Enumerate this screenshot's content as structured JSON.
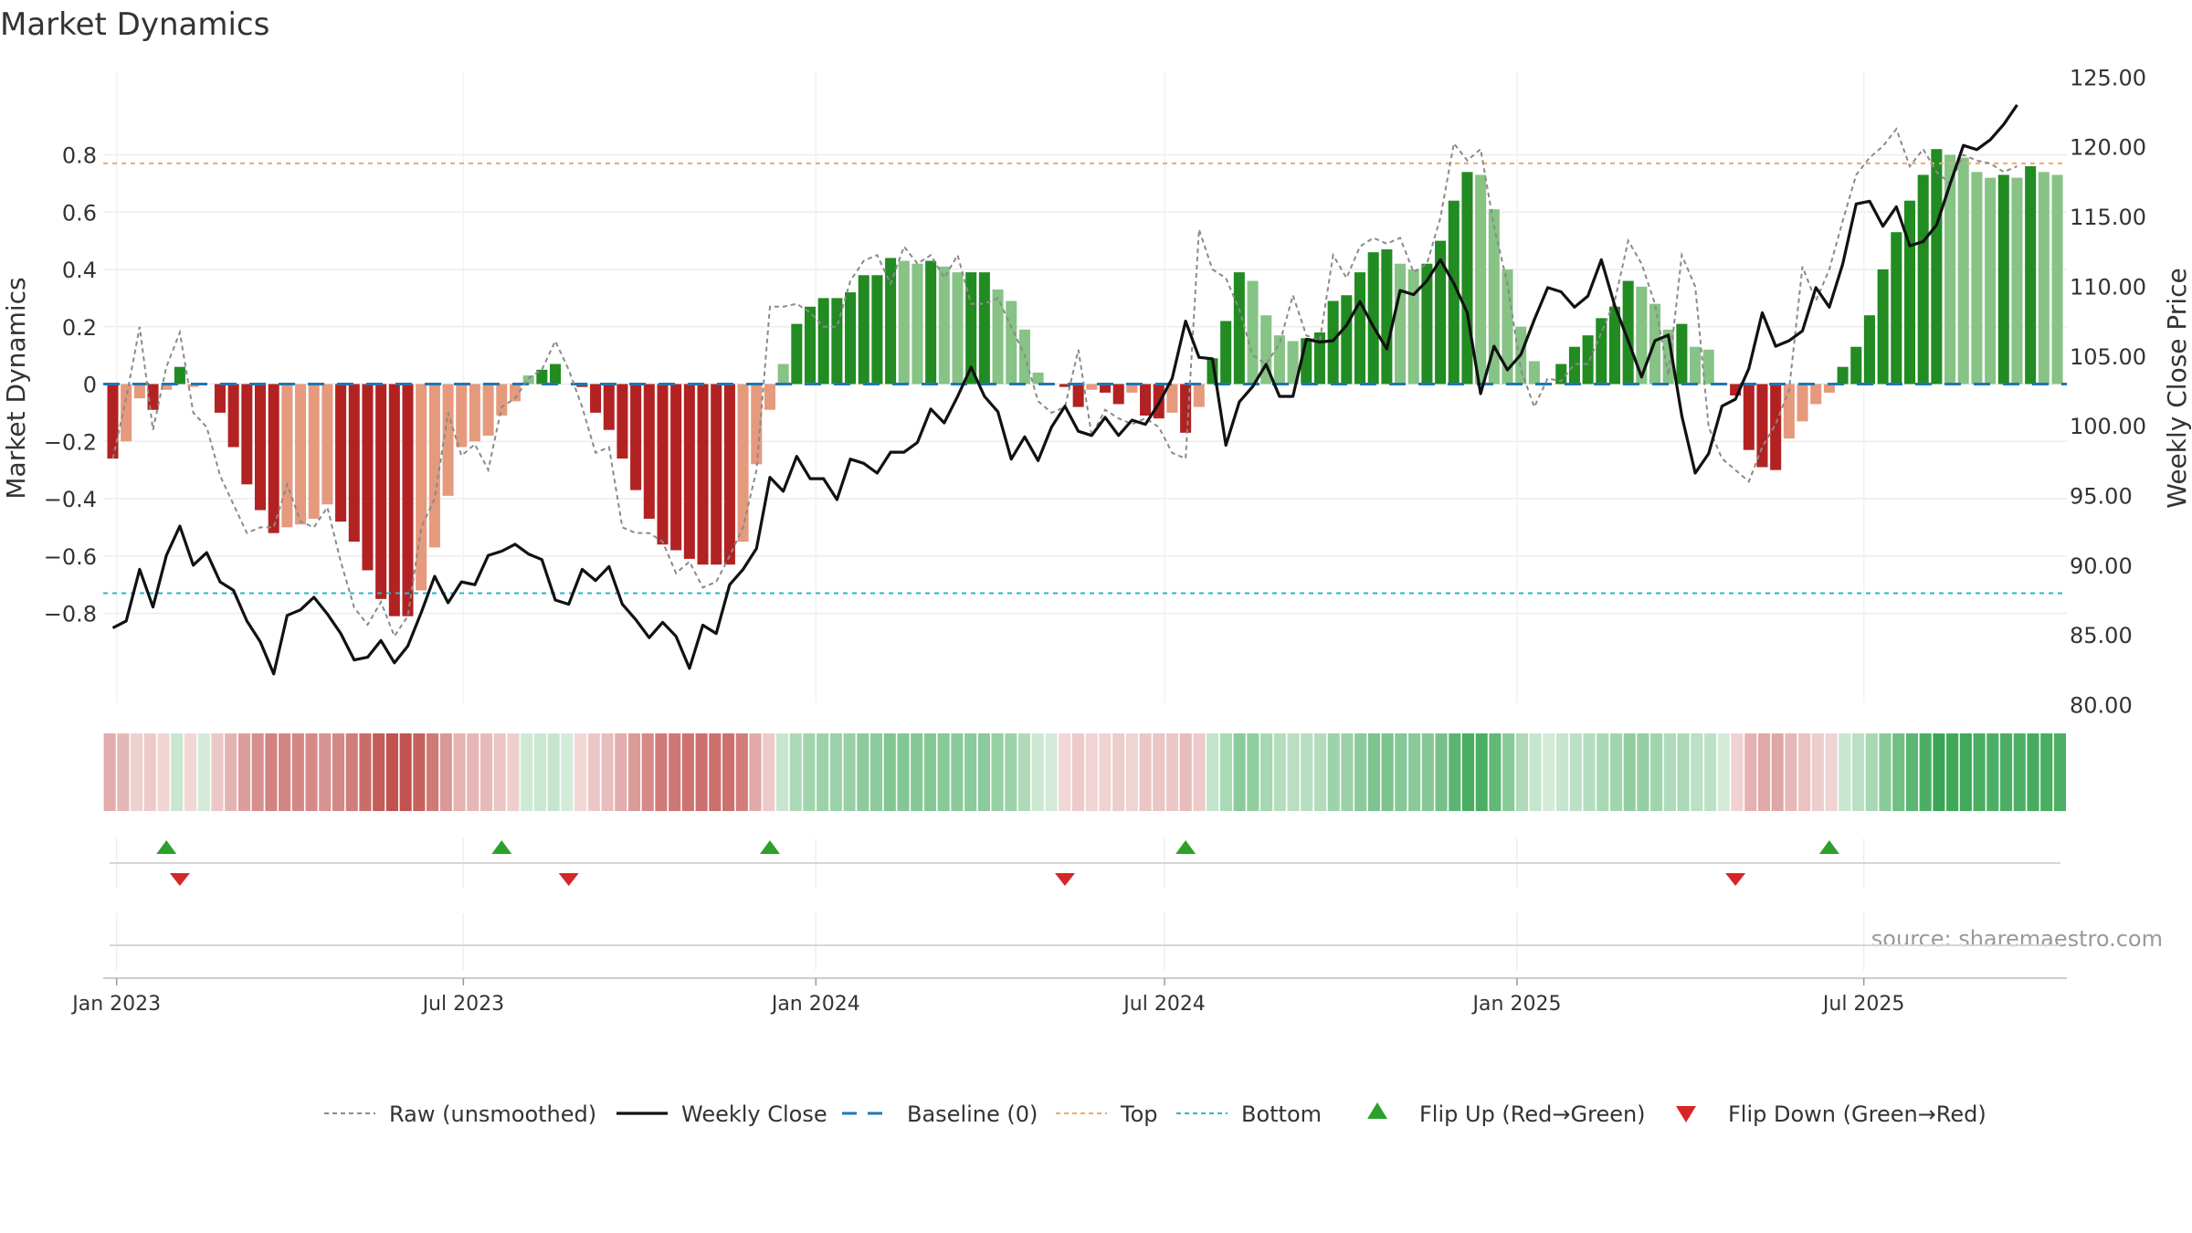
{
  "chart_data": {
    "type": "bar",
    "title": "Market Dynamics",
    "ylabel": "Market Dynamics",
    "ylabel_right": "Weekly Close Price",
    "source": "source: sharemaestro.com",
    "ylim": [
      -0.9,
      0.88
    ],
    "ylim_right": [
      80,
      125
    ],
    "yticks": [
      -0.8,
      -0.6,
      -0.4,
      -0.2,
      0,
      0.2,
      0.4,
      0.6,
      0.8
    ],
    "ytick_labels": [
      "−0.8",
      "−0.6",
      "−0.4",
      "−0.2",
      "0",
      "0.2",
      "0.4",
      "0.6",
      "0.8"
    ],
    "yticks_right": [
      80,
      85,
      90,
      95,
      100,
      105,
      110,
      115,
      120,
      125
    ],
    "ytick_labels_right": [
      "80.00",
      "85.00",
      "90.00",
      "95.00",
      "100.00",
      "105.00",
      "110.00",
      "115.00",
      "120.00",
      "125.00"
    ],
    "x_start": "2022-12-30",
    "x_step_days": 7,
    "xticks": [
      {
        "date": "2023-01-01",
        "label": "Jan 2023"
      },
      {
        "date": "2023-07-01",
        "label": "Jul 2023"
      },
      {
        "date": "2024-01-01",
        "label": "Jan 2024"
      },
      {
        "date": "2024-07-01",
        "label": "Jul 2024"
      },
      {
        "date": "2025-01-01",
        "label": "Jan 2025"
      },
      {
        "date": "2025-07-01",
        "label": "Jul 2025"
      }
    ],
    "top_level": 0.77,
    "bottom_level": -0.73,
    "baseline": 0,
    "bars": [
      -0.26,
      -0.2,
      -0.05,
      -0.09,
      -0.02,
      0.06,
      -0.01,
      0,
      -0.1,
      -0.22,
      -0.35,
      -0.44,
      -0.52,
      -0.5,
      -0.49,
      -0.47,
      -0.42,
      -0.48,
      -0.55,
      -0.65,
      -0.75,
      -0.81,
      -0.81,
      -0.72,
      -0.57,
      -0.39,
      -0.22,
      -0.2,
      -0.18,
      -0.11,
      -0.06,
      0.03,
      0.05,
      0.07,
      0,
      -0.01,
      -0.1,
      -0.16,
      -0.26,
      -0.37,
      -0.47,
      -0.56,
      -0.58,
      -0.61,
      -0.63,
      -0.63,
      -0.63,
      -0.55,
      -0.28,
      -0.09,
      0.07,
      0.21,
      0.27,
      0.3,
      0.3,
      0.32,
      0.38,
      0.38,
      0.44,
      0.43,
      0.42,
      0.43,
      0.41,
      0.39,
      0.39,
      0.39,
      0.33,
      0.29,
      0.19,
      0.04,
      0,
      -0.01,
      -0.08,
      -0.02,
      -0.03,
      -0.07,
      -0.03,
      -0.11,
      -0.12,
      -0.1,
      -0.17,
      -0.08,
      0.09,
      0.22,
      0.39,
      0.36,
      0.24,
      0.17,
      0.15,
      0.16,
      0.18,
      0.29,
      0.31,
      0.39,
      0.46,
      0.47,
      0.42,
      0.4,
      0.42,
      0.5,
      0.64,
      0.74,
      0.73,
      0.61,
      0.4,
      0.2,
      0.08,
      0,
      0.07,
      0.13,
      0.17,
      0.23,
      0.27,
      0.36,
      0.34,
      0.28,
      0.19,
      0.21,
      0.13,
      0.12,
      0,
      -0.04,
      -0.23,
      -0.29,
      -0.3,
      -0.19,
      -0.13,
      -0.07,
      -0.03,
      0.06,
      0.13,
      0.24,
      0.4,
      0.53,
      0.64,
      0.73,
      0.82,
      0.8,
      0.79,
      0.74,
      0.72,
      0.73,
      0.72,
      0.76,
      0.74,
      0.73
    ],
    "series": [
      {
        "name": "Raw (unsmoothed)",
        "values": [
          -0.26,
          -0.05,
          0.2,
          -0.16,
          0.06,
          0.18,
          -0.1,
          -0.15,
          -0.32,
          -0.42,
          -0.52,
          -0.5,
          -0.5,
          -0.35,
          -0.48,
          -0.5,
          -0.43,
          -0.62,
          -0.78,
          -0.84,
          -0.76,
          -0.88,
          -0.81,
          -0.5,
          -0.4,
          -0.1,
          -0.25,
          -0.21,
          -0.3,
          -0.08,
          -0.05,
          0.02,
          0.05,
          0.15,
          0.05,
          -0.08,
          -0.24,
          -0.22,
          -0.5,
          -0.52,
          -0.52,
          -0.55,
          -0.66,
          -0.62,
          -0.71,
          -0.69,
          -0.6,
          -0.5,
          -0.3,
          0.27,
          0.27,
          0.28,
          0.25,
          0.2,
          0.2,
          0.36,
          0.43,
          0.45,
          0.35,
          0.48,
          0.42,
          0.45,
          0.37,
          0.45,
          0.28,
          0.28,
          0.3,
          0.2,
          0.1,
          -0.06,
          -0.1,
          -0.08,
          0.12,
          -0.18,
          -0.09,
          -0.12,
          -0.14,
          -0.12,
          -0.15,
          -0.24,
          -0.26,
          0.54,
          0.4,
          0.37,
          0.26,
          0.1,
          0.07,
          0.14,
          0.31,
          0.17,
          0.15,
          0.45,
          0.37,
          0.48,
          0.51,
          0.49,
          0.51,
          0.39,
          0.42,
          0.58,
          0.84,
          0.78,
          0.82,
          0.55,
          0.35,
          0.05,
          -0.08,
          0.02,
          0.01,
          0.07,
          0.07,
          0.18,
          0.29,
          0.5,
          0.42,
          0.28,
          0.03,
          0.45,
          0.34,
          -0.15,
          -0.26,
          -0.3,
          -0.34,
          -0.22,
          -0.14,
          -0.02,
          0.41,
          0.29,
          0.4,
          0.57,
          0.73,
          0.79,
          0.83,
          0.89,
          0.76,
          0.82,
          0.74,
          0.7,
          0.8,
          0.78,
          0.77,
          0.74,
          0.76
        ]
      },
      {
        "name": "Weekly Close",
        "values": [
          85.5,
          86.0,
          89.7,
          87.0,
          90.7,
          92.8,
          90.0,
          90.9,
          88.8,
          88.2,
          86.0,
          84.5,
          82.2,
          86.4,
          86.8,
          87.7,
          86.5,
          85.1,
          83.2,
          83.4,
          84.6,
          83.0,
          84.2,
          86.6,
          89.2,
          87.3,
          88.8,
          88.6,
          90.7,
          91.0,
          91.5,
          90.8,
          90.4,
          87.5,
          87.2,
          89.7,
          88.9,
          89.9,
          87.2,
          86.1,
          84.8,
          85.9,
          84.9,
          82.6,
          85.7,
          85.1,
          88.6,
          89.7,
          91.2,
          96.3,
          95.3,
          97.8,
          96.2,
          96.2,
          94.7,
          97.6,
          97.3,
          96.6,
          98.1,
          98.1,
          98.8,
          101.2,
          100.2,
          102.1,
          104.2,
          102.1,
          101.0,
          97.6,
          99.2,
          97.5,
          99.9,
          101.4,
          99.6,
          99.3,
          100.6,
          99.3,
          100.4,
          100.1,
          101.6,
          103.4,
          107.5,
          104.9,
          104.8,
          98.6,
          101.7,
          102.8,
          104.4,
          102.1,
          102.1,
          106.2,
          106.0,
          106.1,
          107.2,
          108.9,
          107.1,
          105.5,
          109.7,
          109.4,
          110.4,
          111.9,
          110.2,
          108.1,
          102.3,
          105.7,
          104.0,
          105.1,
          107.6,
          109.9,
          109.6,
          108.5,
          109.3,
          111.9,
          108.6,
          106.1,
          103.5,
          106.1,
          106.5,
          100.7,
          96.6,
          98.0,
          101.4,
          101.9,
          104.1,
          108.1,
          105.7,
          106.1,
          106.8,
          109.9,
          108.5,
          111.6,
          115.9,
          116.1,
          114.3,
          115.7,
          112.9,
          113.2,
          114.4,
          117.3,
          120.1,
          119.8,
          120.5,
          121.6,
          123.0
        ]
      }
    ],
    "flips_up": [
      "2023-01-27",
      "2023-07-21",
      "2023-12-08",
      "2024-07-12",
      "2025-06-13"
    ],
    "flips_down": [
      "2023-02-03",
      "2023-08-25",
      "2024-05-10",
      "2025-04-25"
    ],
    "legend": [
      {
        "label": "Raw (unsmoothed)",
        "marker": "dotted-line",
        "color": "#8a8a8a"
      },
      {
        "label": "Weekly Close",
        "marker": "solid-line",
        "color": "#111111"
      },
      {
        "label": "Baseline (0)",
        "marker": "dashed-line",
        "color": "#1f77b4"
      },
      {
        "label": "Top",
        "marker": "dotted-line",
        "color": "#f0a868"
      },
      {
        "label": "Bottom",
        "marker": "dotted-line",
        "color": "#2ab7ca"
      },
      {
        "label": "Flip Up (Red→Green)",
        "marker": "triangle-up",
        "color": "#2ca02c"
      },
      {
        "label": "Flip Down (Green→Red)",
        "marker": "triangle-down",
        "color": "#d62728"
      }
    ],
    "legend_placement": "bottom-center",
    "grid": true,
    "colors": {
      "pos_strong": "#228b22",
      "pos_weak": "#86c385",
      "neg_strong": "#b22222",
      "neg_weak": "#e59a7d",
      "raw": "#8a8a8a",
      "close": "#111111",
      "baseline": "#1f77b4",
      "top": "#f0a868",
      "bottom": "#2ab7ca"
    }
  }
}
